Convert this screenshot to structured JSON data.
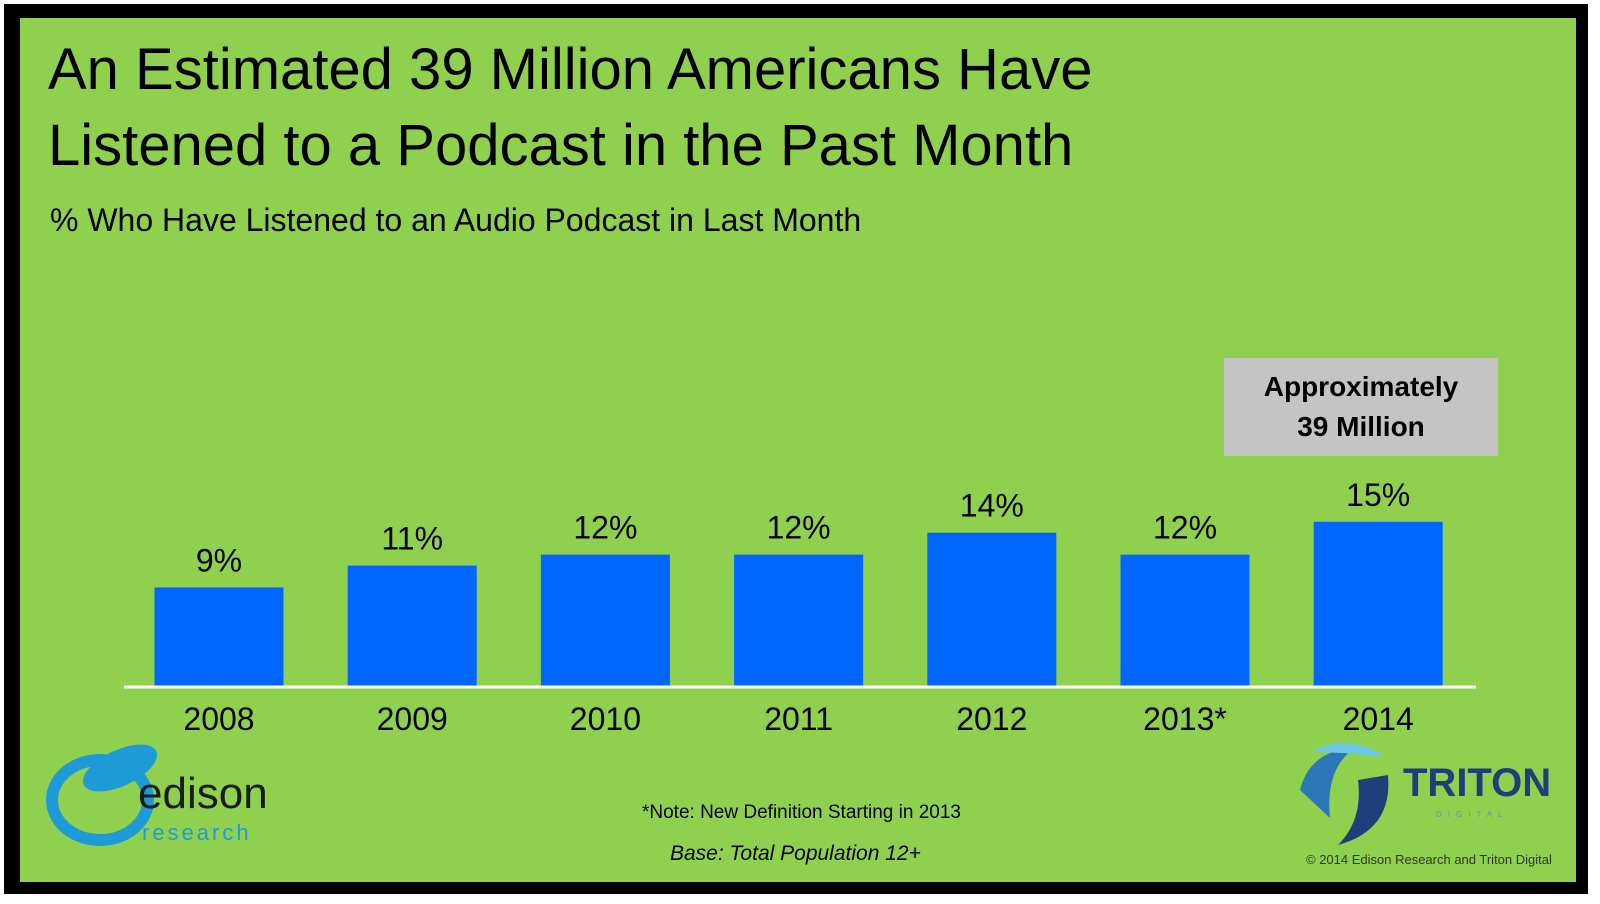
{
  "chart_data": {
    "type": "bar",
    "title": [
      "An Estimated 39 Million Americans Have",
      "Listened to a Podcast in the Past Month"
    ],
    "subtitle": "% Who Have Listened to an Audio Podcast in Last Month",
    "categories": [
      "2008",
      "2009",
      "2010",
      "2011",
      "2012",
      "2013*",
      "2014"
    ],
    "values": [
      9,
      11,
      12,
      12,
      14,
      12,
      15
    ],
    "value_labels": [
      "9%",
      "11%",
      "12%",
      "12%",
      "14%",
      "12%",
      "15%"
    ],
    "color": "#0066ff",
    "annotation": "Approximately 39 Million",
    "note": "*Note: New Definition Starting in 2013",
    "base": "Base: Total Population 12+",
    "copyright": "© 2014 Edison Research and Triton Digital",
    "logo_left": [
      "edison",
      "research"
    ],
    "logo_right": [
      "TRITON",
      "DIGITAL"
    ]
  }
}
